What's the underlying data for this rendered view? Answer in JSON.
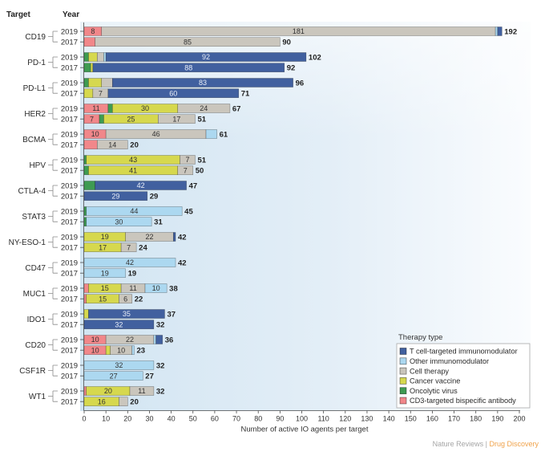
{
  "chart_data": {
    "type": "bar",
    "orientation": "horizontal",
    "stacked": true,
    "headers": {
      "target": "Target",
      "year": "Year"
    },
    "xlabel": "Number of active IO agents per target",
    "xlim": [
      0,
      200
    ],
    "xticks": [
      0,
      10,
      20,
      30,
      40,
      50,
      60,
      70,
      80,
      90,
      100,
      110,
      120,
      130,
      140,
      150,
      160,
      170,
      180,
      190,
      200
    ],
    "grid": false,
    "legend": {
      "title": "Therapy type",
      "position": "bottom-right"
    },
    "series": [
      {
        "name": "T cell-targeted immunomodulator",
        "color": "#41609f"
      },
      {
        "name": "Other immunomodulator",
        "color": "#acd8f0"
      },
      {
        "name": "Cell therapy",
        "color": "#cac6bd"
      },
      {
        "name": "Cancer vaccine",
        "color": "#d6d84e"
      },
      {
        "name": "Oncolytic virus",
        "color": "#3e9b52"
      },
      {
        "name": "CD3-targeted bispecific antibody",
        "color": "#f1878a"
      }
    ],
    "targets": [
      {
        "name": "CD19",
        "bars": [
          {
            "year": "2019",
            "total": 192,
            "segments": [
              {
                "series": 5,
                "value": 8,
                "labeled": true
              },
              {
                "series": 2,
                "value": 181,
                "labeled": true
              },
              {
                "series": 1,
                "value": 1,
                "labeled": false
              },
              {
                "series": 0,
                "value": 2,
                "labeled": false
              }
            ]
          },
          {
            "year": "2017",
            "total": 90,
            "segments": [
              {
                "series": 5,
                "value": 5,
                "labeled": false
              },
              {
                "series": 2,
                "value": 85,
                "labeled": true
              }
            ]
          }
        ]
      },
      {
        "name": "PD-1",
        "bars": [
          {
            "year": "2019",
            "total": 102,
            "segments": [
              {
                "series": 4,
                "value": 2,
                "labeled": false
              },
              {
                "series": 3,
                "value": 4,
                "labeled": false
              },
              {
                "series": 2,
                "value": 3,
                "labeled": false
              },
              {
                "series": 1,
                "value": 1,
                "labeled": false
              },
              {
                "series": 0,
                "value": 92,
                "labeled": true
              }
            ]
          },
          {
            "year": "2017",
            "total": 92,
            "segments": [
              {
                "series": 4,
                "value": 3,
                "labeled": false
              },
              {
                "series": 3,
                "value": 1,
                "labeled": false
              },
              {
                "series": 0,
                "value": 88,
                "labeled": true
              }
            ]
          }
        ]
      },
      {
        "name": "PD-L1",
        "bars": [
          {
            "year": "2019",
            "total": 96,
            "segments": [
              {
                "series": 4,
                "value": 2,
                "labeled": false
              },
              {
                "series": 3,
                "value": 6,
                "labeled": false
              },
              {
                "series": 2,
                "value": 5,
                "labeled": false
              },
              {
                "series": 0,
                "value": 83,
                "labeled": true
              }
            ]
          },
          {
            "year": "2017",
            "total": 71,
            "segments": [
              {
                "series": 3,
                "value": 4,
                "labeled": false
              },
              {
                "series": 2,
                "value": 7,
                "labeled": true
              },
              {
                "series": 0,
                "value": 60,
                "labeled": true
              }
            ]
          }
        ]
      },
      {
        "name": "HER2",
        "bars": [
          {
            "year": "2019",
            "total": 67,
            "segments": [
              {
                "series": 5,
                "value": 11,
                "labeled": true
              },
              {
                "series": 4,
                "value": 2,
                "labeled": false
              },
              {
                "series": 3,
                "value": 30,
                "labeled": true
              },
              {
                "series": 2,
                "value": 24,
                "labeled": true
              }
            ]
          },
          {
            "year": "2017",
            "total": 51,
            "segments": [
              {
                "series": 5,
                "value": 7,
                "labeled": true
              },
              {
                "series": 4,
                "value": 2,
                "labeled": false
              },
              {
                "series": 3,
                "value": 25,
                "labeled": true
              },
              {
                "series": 2,
                "value": 17,
                "labeled": true
              }
            ]
          }
        ]
      },
      {
        "name": "BCMA",
        "bars": [
          {
            "year": "2019",
            "total": 61,
            "segments": [
              {
                "series": 5,
                "value": 10,
                "labeled": true
              },
              {
                "series": 2,
                "value": 46,
                "labeled": true
              },
              {
                "series": 1,
                "value": 5,
                "labeled": false
              }
            ]
          },
          {
            "year": "2017",
            "total": 20,
            "segments": [
              {
                "series": 5,
                "value": 6,
                "labeled": false
              },
              {
                "series": 2,
                "value": 14,
                "labeled": true
              }
            ]
          }
        ]
      },
      {
        "name": "HPV",
        "bars": [
          {
            "year": "2019",
            "total": 51,
            "segments": [
              {
                "series": 4,
                "value": 1,
                "labeled": false
              },
              {
                "series": 3,
                "value": 43,
                "labeled": true
              },
              {
                "series": 2,
                "value": 7,
                "labeled": true
              }
            ]
          },
          {
            "year": "2017",
            "total": 50,
            "segments": [
              {
                "series": 4,
                "value": 2,
                "labeled": false
              },
              {
                "series": 3,
                "value": 41,
                "labeled": true
              },
              {
                "series": 2,
                "value": 7,
                "labeled": true
              }
            ]
          }
        ]
      },
      {
        "name": "CTLA-4",
        "bars": [
          {
            "year": "2019",
            "total": 47,
            "segments": [
              {
                "series": 4,
                "value": 5,
                "labeled": false
              },
              {
                "series": 0,
                "value": 42,
                "labeled": true
              }
            ]
          },
          {
            "year": "2017",
            "total": 29,
            "segments": [
              {
                "series": 0,
                "value": 29,
                "labeled": true
              }
            ]
          }
        ]
      },
      {
        "name": "STAT3",
        "bars": [
          {
            "year": "2019",
            "total": 45,
            "segments": [
              {
                "series": 4,
                "value": 1,
                "labeled": false
              },
              {
                "series": 1,
                "value": 44,
                "labeled": true
              }
            ]
          },
          {
            "year": "2017",
            "total": 31,
            "segments": [
              {
                "series": 4,
                "value": 1,
                "labeled": false
              },
              {
                "series": 1,
                "value": 30,
                "labeled": true
              }
            ]
          }
        ]
      },
      {
        "name": "NY-ESO-1",
        "bars": [
          {
            "year": "2019",
            "total": 42,
            "segments": [
              {
                "series": 3,
                "value": 19,
                "labeled": true
              },
              {
                "series": 2,
                "value": 22,
                "labeled": true
              },
              {
                "series": 0,
                "value": 1,
                "labeled": false
              }
            ]
          },
          {
            "year": "2017",
            "total": 24,
            "segments": [
              {
                "series": 3,
                "value": 17,
                "labeled": true
              },
              {
                "series": 2,
                "value": 7,
                "labeled": true
              }
            ]
          }
        ]
      },
      {
        "name": "CD47",
        "bars": [
          {
            "year": "2019",
            "total": 42,
            "segments": [
              {
                "series": 1,
                "value": 42,
                "labeled": true
              }
            ]
          },
          {
            "year": "2017",
            "total": 19,
            "segments": [
              {
                "series": 1,
                "value": 19,
                "labeled": true
              }
            ]
          }
        ]
      },
      {
        "name": "MUC1",
        "bars": [
          {
            "year": "2019",
            "total": 38,
            "segments": [
              {
                "series": 5,
                "value": 2,
                "labeled": false
              },
              {
                "series": 3,
                "value": 15,
                "labeled": true
              },
              {
                "series": 2,
                "value": 11,
                "labeled": true
              },
              {
                "series": 1,
                "value": 10,
                "labeled": true
              }
            ]
          },
          {
            "year": "2017",
            "total": 22,
            "segments": [
              {
                "series": 5,
                "value": 1,
                "labeled": false
              },
              {
                "series": 3,
                "value": 15,
                "labeled": true
              },
              {
                "series": 2,
                "value": 6,
                "labeled": true
              }
            ]
          }
        ]
      },
      {
        "name": "IDO1",
        "bars": [
          {
            "year": "2019",
            "total": 37,
            "segments": [
              {
                "series": 3,
                "value": 2,
                "labeled": false
              },
              {
                "series": 0,
                "value": 35,
                "labeled": true
              }
            ]
          },
          {
            "year": "2017",
            "total": 32,
            "segments": [
              {
                "series": 0,
                "value": 32,
                "labeled": true
              }
            ]
          }
        ]
      },
      {
        "name": "CD20",
        "bars": [
          {
            "year": "2019",
            "total": 36,
            "segments": [
              {
                "series": 5,
                "value": 10,
                "labeled": true
              },
              {
                "series": 2,
                "value": 22,
                "labeled": true
              },
              {
                "series": 1,
                "value": 1,
                "labeled": false
              },
              {
                "series": 0,
                "value": 3,
                "labeled": false
              }
            ]
          },
          {
            "year": "2017",
            "total": 23,
            "segments": [
              {
                "series": 5,
                "value": 10,
                "labeled": true
              },
              {
                "series": 3,
                "value": 2,
                "labeled": false
              },
              {
                "series": 2,
                "value": 10,
                "labeled": true
              },
              {
                "series": 1,
                "value": 1,
                "labeled": false
              }
            ]
          }
        ]
      },
      {
        "name": "CSF1R",
        "bars": [
          {
            "year": "2019",
            "total": 32,
            "segments": [
              {
                "series": 1,
                "value": 32,
                "labeled": true
              }
            ]
          },
          {
            "year": "2017",
            "total": 27,
            "segments": [
              {
                "series": 1,
                "value": 27,
                "labeled": true
              }
            ]
          }
        ]
      },
      {
        "name": "WT1",
        "bars": [
          {
            "year": "2019",
            "total": 32,
            "segments": [
              {
                "series": 5,
                "value": 1,
                "labeled": false
              },
              {
                "series": 3,
                "value": 20,
                "labeled": true
              },
              {
                "series": 2,
                "value": 11,
                "labeled": true
              }
            ]
          },
          {
            "year": "2017",
            "total": 20,
            "segments": [
              {
                "series": 3,
                "value": 16,
                "labeled": true
              },
              {
                "series": 2,
                "value": 4,
                "labeled": false
              }
            ]
          }
        ]
      }
    ]
  },
  "footer": {
    "journal": "Nature Reviews",
    "separator": "|",
    "section": "Drug Discovery"
  }
}
